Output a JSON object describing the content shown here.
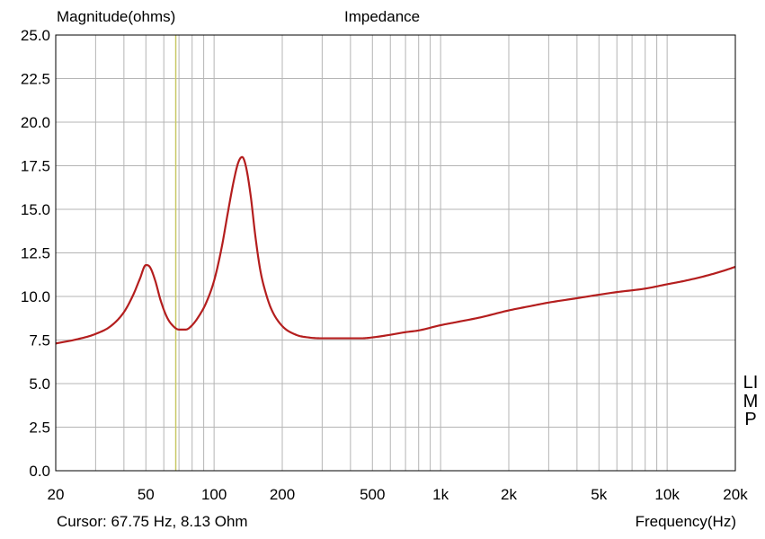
{
  "chart_data": {
    "type": "line",
    "title": "Impedance",
    "ylabel": "Magnitude(ohms)",
    "xlabel": "Frequency(Hz)",
    "side_label": "LIMP",
    "cursor_readout": "Cursor: 67.75 Hz, 8.13 Ohm",
    "x_scale": "log",
    "xlim": [
      20,
      20000
    ],
    "ylim": [
      0,
      25
    ],
    "grid": true,
    "x_ticks": [
      {
        "value": 20,
        "label": "20"
      },
      {
        "value": 50,
        "label": "50"
      },
      {
        "value": 100,
        "label": "100"
      },
      {
        "value": 200,
        "label": "200"
      },
      {
        "value": 500,
        "label": "500"
      },
      {
        "value": 1000,
        "label": "1k"
      },
      {
        "value": 2000,
        "label": "2k"
      },
      {
        "value": 5000,
        "label": "5k"
      },
      {
        "value": 10000,
        "label": "10k"
      },
      {
        "value": 20000,
        "label": "20k"
      }
    ],
    "y_ticks": [
      {
        "value": 0,
        "label": "0.0"
      },
      {
        "value": 2.5,
        "label": "2.5"
      },
      {
        "value": 5,
        "label": "5.0"
      },
      {
        "value": 7.5,
        "label": "7.5"
      },
      {
        "value": 10,
        "label": "10.0"
      },
      {
        "value": 12.5,
        "label": "12.5"
      },
      {
        "value": 15,
        "label": "15.0"
      },
      {
        "value": 17.5,
        "label": "17.5"
      },
      {
        "value": 20,
        "label": "20.0"
      },
      {
        "value": 22.5,
        "label": "22.5"
      },
      {
        "value": 25,
        "label": "25.0"
      }
    ],
    "cursor": {
      "x": 67.75,
      "y": 8.13,
      "color": "#c8c864"
    },
    "series": [
      {
        "color": "#b41e1e",
        "x": [
          20,
          25,
          30,
          35,
          40,
          44,
          47,
          50,
          52,
          55,
          58,
          62,
          66,
          70,
          75,
          80,
          86,
          92,
          100,
          108,
          115,
          122,
          128,
          133,
          138,
          145,
          152,
          160,
          170,
          180,
          200,
          230,
          260,
          300,
          350,
          400,
          450,
          500,
          600,
          700,
          800,
          1000,
          1200,
          1500,
          2000,
          2500,
          3000,
          4000,
          5000,
          6000,
          8000,
          10000,
          12000,
          15000,
          18000,
          20000
        ],
        "y": [
          7.3,
          7.55,
          7.85,
          8.3,
          9.1,
          10.1,
          11.0,
          11.8,
          11.7,
          10.9,
          9.8,
          8.8,
          8.3,
          8.1,
          8.1,
          8.35,
          8.9,
          9.6,
          10.9,
          12.8,
          14.8,
          16.6,
          17.7,
          18.0,
          17.5,
          15.8,
          13.5,
          11.5,
          10.1,
          9.2,
          8.3,
          7.8,
          7.65,
          7.6,
          7.6,
          7.6,
          7.6,
          7.65,
          7.8,
          7.95,
          8.05,
          8.35,
          8.55,
          8.8,
          9.2,
          9.45,
          9.65,
          9.9,
          10.1,
          10.25,
          10.45,
          10.7,
          10.9,
          11.2,
          11.5,
          11.7
        ]
      }
    ]
  }
}
